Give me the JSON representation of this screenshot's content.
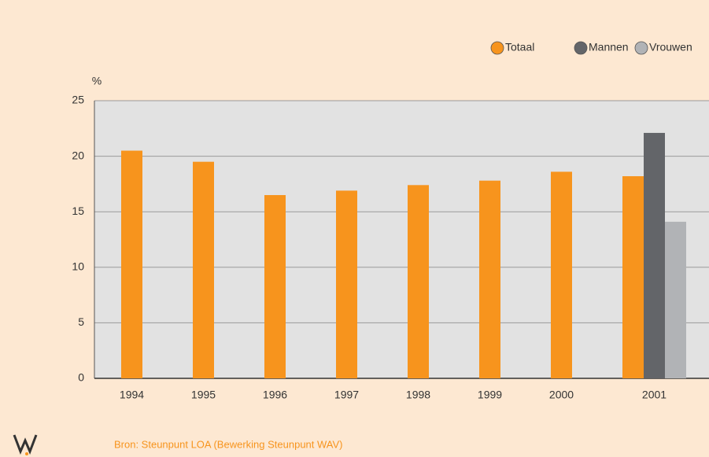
{
  "chart_data": {
    "type": "bar",
    "y_axis_label": "%",
    "categories": [
      "1994",
      "1995",
      "1996",
      "1997",
      "1998",
      "1999",
      "2000",
      "2001"
    ],
    "series": [
      {
        "name": "Totaal",
        "color": "#f7941d",
        "values": [
          20.5,
          19.5,
          16.5,
          16.9,
          17.4,
          17.8,
          18.6,
          18.2
        ]
      },
      {
        "name": "Mannen",
        "color": "#636569",
        "values": [
          null,
          null,
          null,
          null,
          null,
          null,
          null,
          22.1
        ]
      },
      {
        "name": "Vrouwen",
        "color": "#b1b3b6",
        "values": [
          null,
          null,
          null,
          null,
          null,
          null,
          null,
          14.1
        ]
      }
    ],
    "ylim": [
      0,
      25
    ],
    "yticks": [
      0,
      5,
      10,
      15,
      20,
      25
    ],
    "grid": true,
    "legend": "top-right",
    "source": "Bron:  Steunpunt LOA (Bewerking Steunpunt WAV)"
  }
}
